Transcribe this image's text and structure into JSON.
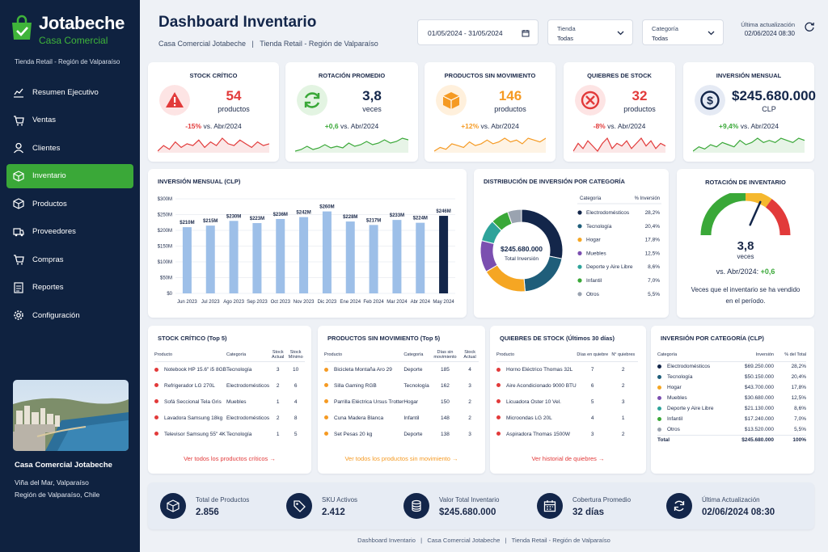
{
  "brand": {
    "name": "Jotabeche",
    "sub": "Casa Comercial",
    "tag": "Tienda Retail - Región de Valparaíso"
  },
  "nav": [
    {
      "label": "Resumen Ejecutivo",
      "icon": "chart-icon",
      "active": false
    },
    {
      "label": "Ventas",
      "icon": "cart-icon",
      "active": false
    },
    {
      "label": "Clientes",
      "icon": "user-icon",
      "active": false
    },
    {
      "label": "Inventario",
      "icon": "box-icon",
      "active": true
    },
    {
      "label": "Productos",
      "icon": "cube-icon",
      "active": false
    },
    {
      "label": "Proveedores",
      "icon": "truck-icon",
      "active": false
    },
    {
      "label": "Compras",
      "icon": "cart-icon",
      "active": false
    },
    {
      "label": "Reportes",
      "icon": "report-icon",
      "active": false
    },
    {
      "label": "Configuración",
      "icon": "gear-icon",
      "active": false
    }
  ],
  "sidebar_footer": {
    "company": "Casa Comercial Jotabeche",
    "line1": "Viña del Mar, Valparaíso",
    "line2": "Región de Valparaíso, Chile"
  },
  "header": {
    "title": "Dashboard Inventario",
    "subtitle": "Casa Comercial Jotabeche   |   Tienda Retail - Región de Valparaíso",
    "date_range": "01/05/2024 - 31/05/2024",
    "store_label": "Tienda",
    "store_value": "Todas",
    "category_label": "Categoría",
    "category_value": "Todas",
    "update_label": "Última actualización",
    "update_value": "02/06/2024 08:30"
  },
  "colors": {
    "green": "#3aa838",
    "red": "#e23a3a",
    "orange": "#f59a23",
    "navy": "#13264a",
    "bar": "#9dbfe8"
  },
  "kpis": [
    {
      "title": "STOCK CRÍTICO",
      "value": "54",
      "unit": "productos",
      "delta": "-15%",
      "cmp": "vs. Abr/2024",
      "color": "#e23a3a",
      "icon": "warning-icon",
      "spark": [
        6,
        9,
        7,
        11,
        8,
        10,
        9,
        12,
        8,
        11,
        9,
        13,
        10,
        9,
        12,
        10,
        8,
        11,
        9,
        10
      ]
    },
    {
      "title": "ROTACIÓN PROMEDIO",
      "value": "3,8",
      "unit": "veces",
      "delta": "+0,6",
      "cmp": "vs. Abr/2024",
      "color": "#3aa838",
      "icon": "refresh-icon",
      "spark": [
        5,
        6,
        8,
        6,
        7,
        9,
        7,
        8,
        7,
        10,
        8,
        9,
        11,
        9,
        10,
        12,
        10,
        11,
        13,
        12
      ]
    },
    {
      "title": "PRODUCTOS SIN MOVIMIENTO",
      "value": "146",
      "unit": "productos",
      "delta": "+12%",
      "cmp": "vs. Abr/2024",
      "color": "#f59a23",
      "icon": "package-icon",
      "spark": [
        5,
        7,
        6,
        9,
        8,
        7,
        10,
        8,
        9,
        11,
        9,
        10,
        12,
        10,
        11,
        9,
        12,
        11,
        10,
        12
      ]
    },
    {
      "title": "QUIEBRES DE STOCK",
      "value": "32",
      "unit": "productos",
      "delta": "-8%",
      "cmp": "vs. Abr/2024",
      "color": "#e23a3a",
      "icon": "cancel-icon",
      "spark": [
        7,
        10,
        8,
        11,
        9,
        7,
        10,
        12,
        8,
        10,
        9,
        11,
        8,
        10,
        12,
        9,
        11,
        8,
        10,
        9
      ]
    },
    {
      "title": "INVERSIÓN MENSUAL",
      "value": "$245.680.000",
      "unit": "CLP",
      "delta": "+9,4%",
      "cmp": "vs. Abr/2024",
      "color": "#13264a",
      "icon": "dollar-icon",
      "spark": [
        6,
        8,
        7,
        9,
        8,
        10,
        9,
        8,
        11,
        9,
        10,
        12,
        10,
        11,
        10,
        12,
        11,
        10,
        12,
        11
      ]
    }
  ],
  "chart_data": [
    {
      "type": "bar",
      "title": "INVERSIÓN MENSUAL (CLP)",
      "categories": [
        "Jun 2023",
        "Jul 2023",
        "Ago 2023",
        "Sep 2023",
        "Oct 2023",
        "Nov 2023",
        "Dic 2023",
        "Ene 2024",
        "Feb 2024",
        "Mar 2024",
        "Abr 2024",
        "May 2024"
      ],
      "values": [
        210,
        215,
        230,
        223,
        236,
        242,
        260,
        228,
        217,
        233,
        224,
        246
      ],
      "labels": [
        "$210M",
        "$215M",
        "$230M",
        "$223M",
        "$236M",
        "$242M",
        "$260M",
        "$228M",
        "$217M",
        "$233M",
        "$224M",
        "$246M"
      ],
      "yticks": [
        "$0",
        "$50M",
        "$100M",
        "$150M",
        "$200M",
        "$250M",
        "$300M"
      ],
      "ylim": [
        0,
        300
      ],
      "highlight_index": 11
    },
    {
      "type": "pie",
      "title": "DISTRIBUCIÓN DE INVERSIÓN POR CATEGORÍA",
      "center_value": "$245.680.000",
      "center_label": "Total Inversión",
      "col_category": "Categoría",
      "col_pct": "% Inversión",
      "slices": [
        {
          "name": "Electrodomésticos",
          "value": 28.2,
          "label": "28,2%",
          "color": "#13264a"
        },
        {
          "name": "Tecnología",
          "value": 20.4,
          "label": "20,4%",
          "color": "#1f5e7a"
        },
        {
          "name": "Hogar",
          "value": 17.8,
          "label": "17,8%",
          "color": "#f5a623"
        },
        {
          "name": "Muebles",
          "value": 12.5,
          "label": "12,5%",
          "color": "#7b4fb0"
        },
        {
          "name": "Deporte y Aire Libre",
          "value": 8.6,
          "label": "8,6%",
          "color": "#2ea39a"
        },
        {
          "name": "Infantil",
          "value": 7.0,
          "label": "7,0%",
          "color": "#3aa838"
        },
        {
          "name": "Otros",
          "value": 5.5,
          "label": "5,5%",
          "color": "#9aa3b0"
        }
      ]
    }
  ],
  "gauge": {
    "title": "ROTACIÓN DE INVENTARIO",
    "value": 3.8,
    "max": 6,
    "display": "3,8",
    "unit": "veces",
    "cmp_prefix": "vs. Abr/2024:",
    "cmp_delta": "+0,6",
    "caption": "Veces que el inventario se ha vendido en el período."
  },
  "stock_critico": {
    "title": "STOCK CRÍTICO (Top 5)",
    "headers": [
      "Producto",
      "Categoría",
      "Stock Actual",
      "Stock Mínimo"
    ],
    "rows": [
      [
        "Notebook HP 15.6\" i5 8GB",
        "Tecnología",
        "3",
        "10"
      ],
      [
        "Refrigerador LG 270L",
        "Electrodomésticos",
        "2",
        "6"
      ],
      [
        "Sofá Seccional Tela Gris",
        "Muebles",
        "1",
        "4"
      ],
      [
        "Lavadora Samsung 18kg",
        "Electrodomésticos",
        "2",
        "8"
      ],
      [
        "Televisor Samsung 55\" 4K",
        "Tecnología",
        "1",
        "5"
      ]
    ],
    "link": "Ver todos los productos críticos"
  },
  "sin_movimiento": {
    "title": "PRODUCTOS SIN MOVIMIENTO (Top 5)",
    "headers": [
      "Producto",
      "Categoría",
      "Días sin movimiento",
      "Stock Actual"
    ],
    "rows": [
      [
        "Bicicleta Montaña Aro 29",
        "Deporte",
        "185",
        "4"
      ],
      [
        "Silla Gaming RGB",
        "Tecnología",
        "162",
        "3"
      ],
      [
        "Parrilla Eléctrica Ursus Trotter",
        "Hogar",
        "150",
        "2"
      ],
      [
        "Cuna Madera Blanca",
        "Infantil",
        "148",
        "2"
      ],
      [
        "Set Pesas 20 kg",
        "Deporte",
        "138",
        "3"
      ]
    ],
    "link": "Ver todos los productos sin movimiento"
  },
  "quiebres": {
    "title": "QUIEBRES DE STOCK (Últimos 30 días)",
    "headers": [
      "Producto",
      "Días en quiebre",
      "N° quiebres"
    ],
    "rows": [
      [
        "Horno Eléctrico Thomas 32L",
        "7",
        "2"
      ],
      [
        "Aire Acondicionado 9000 BTU",
        "6",
        "2"
      ],
      [
        "Licuadora Oster 10 Vel.",
        "5",
        "3"
      ],
      [
        "Microondas LG 20L",
        "4",
        "1"
      ],
      [
        "Aspiradora Thomas 1500W",
        "3",
        "2"
      ]
    ],
    "link": "Ver historial de quiebres"
  },
  "inv_categoria": {
    "title": "INVERSIÓN POR CATEGORÍA (CLP)",
    "headers": [
      "Categoría",
      "Inversión",
      "% del Total"
    ],
    "rows": [
      [
        "Electrodomésticos",
        "$69.250.000",
        "28,2%"
      ],
      [
        "Tecnología",
        "$50.150.000",
        "20,4%"
      ],
      [
        "Hogar",
        "$43.700.000",
        "17,8%"
      ],
      [
        "Muebles",
        "$30.680.000",
        "12,5%"
      ],
      [
        "Deporte y Aire Libre",
        "$21.130.000",
        "8,6%"
      ],
      [
        "Infantil",
        "$17.240.000",
        "7,0%"
      ],
      [
        "Otros",
        "$13.520.000",
        "5,5%"
      ]
    ],
    "total": [
      "Total",
      "$245.680.000",
      "100%"
    ]
  },
  "footer_stats": [
    {
      "label": "Total de Productos",
      "value": "2.856",
      "icon": "cube-icon"
    },
    {
      "label": "SKU Activos",
      "value": "2.412",
      "icon": "tag-icon"
    },
    {
      "label": "Valor Total Inventario",
      "value": "$245.680.000",
      "icon": "coins-icon"
    },
    {
      "label": "Cobertura Promedio",
      "value": "32 días",
      "icon": "calendar-icon"
    },
    {
      "label": "Última Actualización",
      "value": "02/06/2024 08:30",
      "icon": "refresh-icon"
    }
  ],
  "footer": "Dashboard Inventario   |   Casa Comercial Jotabeche   |   Tienda Retail - Región de Valparaíso"
}
